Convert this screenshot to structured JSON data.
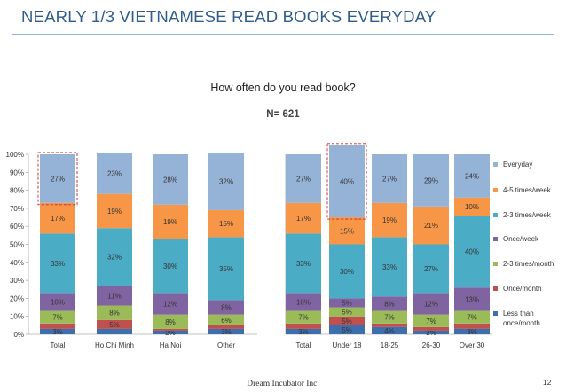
{
  "slide": {
    "title": "NEARLY 1/3 VIETNAMESE READ BOOKS EVERYDAY",
    "footer": "Dream Incubator Inc.",
    "page_number": "12"
  },
  "chart_data": {
    "type": "bar",
    "stacked": true,
    "title": "How often do you read book?",
    "subtitle": "N= 621",
    "ylim": [
      0,
      100
    ],
    "yticks": [
      "0%",
      "10%",
      "20%",
      "30%",
      "40%",
      "50%",
      "60%",
      "70%",
      "80%",
      "90%",
      "100%"
    ],
    "legend_position": "right",
    "categories": [
      "Total",
      "Ho Chi Minh",
      "Ha Noi",
      "Other",
      "Total",
      "Under 18",
      "18-25",
      "26-30",
      "Over 30"
    ],
    "groups": [
      {
        "categories": [
          "Total",
          "Ho Chi Minh",
          "Ha Noi",
          "Other"
        ]
      },
      {
        "categories": [
          "Total",
          "Under 18",
          "18-25",
          "26-30",
          "Over 30"
        ]
      }
    ],
    "highlighted": [
      {
        "category_index": 0,
        "series": "Everyday"
      },
      {
        "category_index": 5,
        "series": "Everyday"
      }
    ],
    "series": [
      {
        "name": "Less than once/month",
        "color": "#3d6fae",
        "values": [
          3,
          3,
          2,
          3,
          3,
          5,
          4,
          2,
          3
        ],
        "labels": [
          "3%",
          "",
          "2%",
          "3%",
          "3%",
          "5%",
          "4%",
          "2%",
          "3%"
        ]
      },
      {
        "name": "Once/month",
        "color": "#c0504d",
        "values": [
          3,
          5,
          1,
          2,
          3,
          5,
          2,
          2,
          3
        ],
        "labels": [
          "",
          "5%",
          "",
          "",
          "",
          "5%",
          "",
          "",
          ""
        ]
      },
      {
        "name": "2-3 times/month",
        "color": "#9bbb59",
        "values": [
          7,
          8,
          8,
          6,
          7,
          5,
          7,
          7,
          7
        ],
        "labels": [
          "7%",
          "8%",
          "8%",
          "6%",
          "7%",
          "5%",
          "7%",
          "7%",
          "7%"
        ]
      },
      {
        "name": "Once/week",
        "color": "#8064a2",
        "values": [
          10,
          11,
          12,
          8,
          10,
          5,
          8,
          12,
          13
        ],
        "labels": [
          "10%",
          "11%",
          "12%",
          "8%",
          "10%",
          "5%",
          "8%",
          "12%",
          "13%"
        ]
      },
      {
        "name": "2-3 times/week",
        "color": "#4bacc6",
        "values": [
          33,
          32,
          30,
          35,
          33,
          30,
          33,
          27,
          40
        ],
        "labels": [
          "33%",
          "32%",
          "30%",
          "35%",
          "33%",
          "30%",
          "33%",
          "27%",
          "40%"
        ]
      },
      {
        "name": "4-5 times/week",
        "color": "#f79646",
        "values": [
          17,
          19,
          19,
          15,
          17,
          15,
          19,
          21,
          10
        ],
        "labels": [
          "17%",
          "19%",
          "19%",
          "15%",
          "17%",
          "15%",
          "19%",
          "21%",
          "10%"
        ]
      },
      {
        "name": "Everyday",
        "color": "#95b3d7",
        "values": [
          27,
          23,
          28,
          32,
          27,
          40,
          27,
          29,
          24
        ],
        "labels": [
          "27%",
          "23%",
          "28%",
          "32%",
          "27%",
          "40%",
          "27%",
          "29%",
          "24%"
        ]
      }
    ],
    "legend": [
      "Everyday",
      "4-5 times/week",
      "2-3 times/week",
      "Once/week",
      "2-3 times/month",
      "Once/month",
      "Less than once/month"
    ]
  }
}
